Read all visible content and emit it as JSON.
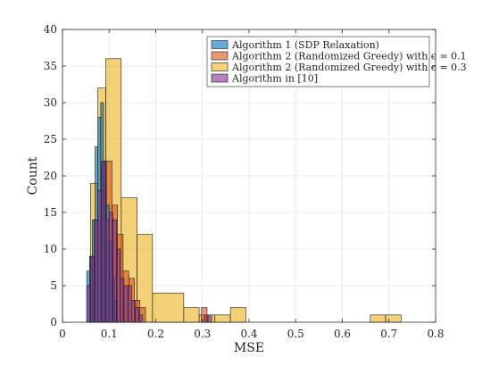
{
  "chart_data": {
    "type": "histogram",
    "xlabel": "MSE",
    "ylabel": "Count",
    "xlim": [
      0,
      0.8
    ],
    "ylim": [
      0,
      40
    ],
    "xticks": [
      "0",
      "0.1",
      "0.2",
      "0.3",
      "0.4",
      "0.5",
      "0.6",
      "0.7",
      "0.8"
    ],
    "yticks": [
      "0",
      "5",
      "10",
      "15",
      "20",
      "25",
      "30",
      "35",
      "40"
    ],
    "grid": true,
    "legend_position": "top-right",
    "series": [
      {
        "name": "Algorithm 2 (Randomized Greedy) with ϵ = 0.3",
        "color": "#EDB120",
        "bins": [
          {
            "x0": 0.06,
            "x1": 0.076,
            "count": 19
          },
          {
            "x0": 0.076,
            "x1": 0.093,
            "count": 32
          },
          {
            "x0": 0.093,
            "x1": 0.126,
            "count": 36
          },
          {
            "x0": 0.126,
            "x1": 0.16,
            "count": 17
          },
          {
            "x0": 0.16,
            "x1": 0.193,
            "count": 12
          },
          {
            "x0": 0.193,
            "x1": 0.26,
            "count": 4
          },
          {
            "x0": 0.26,
            "x1": 0.293,
            "count": 2
          },
          {
            "x0": 0.293,
            "x1": 0.326,
            "count": 1
          },
          {
            "x0": 0.326,
            "x1": 0.36,
            "count": 1
          },
          {
            "x0": 0.36,
            "x1": 0.393,
            "count": 2
          },
          {
            "x0": 0.66,
            "x1": 0.693,
            "count": 1
          },
          {
            "x0": 0.693,
            "x1": 0.726,
            "count": 1
          }
        ]
      },
      {
        "name": "Algorithm 2 (Randomized Greedy) with ϵ = 0.1",
        "color": "#D95319",
        "bins": [
          {
            "x0": 0.058,
            "x1": 0.07,
            "count": 9
          },
          {
            "x0": 0.07,
            "x1": 0.082,
            "count": 14
          },
          {
            "x0": 0.082,
            "x1": 0.094,
            "count": 22
          },
          {
            "x0": 0.094,
            "x1": 0.106,
            "count": 22
          },
          {
            "x0": 0.106,
            "x1": 0.118,
            "count": 16
          },
          {
            "x0": 0.118,
            "x1": 0.13,
            "count": 12
          },
          {
            "x0": 0.13,
            "x1": 0.142,
            "count": 7
          },
          {
            "x0": 0.142,
            "x1": 0.154,
            "count": 6
          },
          {
            "x0": 0.154,
            "x1": 0.166,
            "count": 3
          },
          {
            "x0": 0.166,
            "x1": 0.178,
            "count": 2
          },
          {
            "x0": 0.298,
            "x1": 0.31,
            "count": 2
          }
        ]
      },
      {
        "name": "Algorithm 1 (SDP Relaxation)",
        "color": "#0072BD",
        "bins": [
          {
            "x0": 0.052,
            "x1": 0.058,
            "count": 7
          },
          {
            "x0": 0.058,
            "x1": 0.064,
            "count": 9
          },
          {
            "x0": 0.064,
            "x1": 0.07,
            "count": 14
          },
          {
            "x0": 0.07,
            "x1": 0.076,
            "count": 24
          },
          {
            "x0": 0.076,
            "x1": 0.082,
            "count": 28
          },
          {
            "x0": 0.082,
            "x1": 0.088,
            "count": 30
          },
          {
            "x0": 0.088,
            "x1": 0.094,
            "count": 22
          },
          {
            "x0": 0.094,
            "x1": 0.1,
            "count": 16
          },
          {
            "x0": 0.1,
            "x1": 0.106,
            "count": 11
          },
          {
            "x0": 0.106,
            "x1": 0.112,
            "count": 6
          },
          {
            "x0": 0.112,
            "x1": 0.118,
            "count": 3
          }
        ]
      },
      {
        "name": "Algorithm in [10]",
        "color": "#7E2F8E",
        "bins": [
          {
            "x0": 0.052,
            "x1": 0.06,
            "count": 5
          },
          {
            "x0": 0.06,
            "x1": 0.068,
            "count": 9
          },
          {
            "x0": 0.068,
            "x1": 0.076,
            "count": 14
          },
          {
            "x0": 0.076,
            "x1": 0.084,
            "count": 18
          },
          {
            "x0": 0.084,
            "x1": 0.092,
            "count": 22
          },
          {
            "x0": 0.092,
            "x1": 0.1,
            "count": 14
          },
          {
            "x0": 0.1,
            "x1": 0.108,
            "count": 15
          },
          {
            "x0": 0.108,
            "x1": 0.116,
            "count": 14
          },
          {
            "x0": 0.116,
            "x1": 0.124,
            "count": 10
          },
          {
            "x0": 0.124,
            "x1": 0.132,
            "count": 6
          },
          {
            "x0": 0.132,
            "x1": 0.14,
            "count": 5
          },
          {
            "x0": 0.14,
            "x1": 0.148,
            "count": 5
          },
          {
            "x0": 0.148,
            "x1": 0.156,
            "count": 3
          },
          {
            "x0": 0.156,
            "x1": 0.164,
            "count": 2
          },
          {
            "x0": 0.164,
            "x1": 0.172,
            "count": 1
          },
          {
            "x0": 0.304,
            "x1": 0.312,
            "count": 1
          },
          {
            "x0": 0.312,
            "x1": 0.32,
            "count": 1
          }
        ]
      }
    ],
    "legend_order": [
      "Algorithm 1 (SDP Relaxation)",
      "Algorithm 2 (Randomized Greedy) with ϵ = 0.1",
      "Algorithm 2 (Randomized Greedy) with ϵ = 0.3",
      "Algorithm in [10]"
    ]
  }
}
